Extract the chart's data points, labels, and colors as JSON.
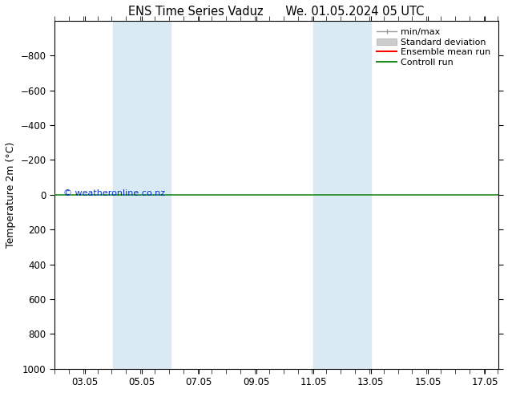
{
  "title": "ENS Time Series Vaduz      We. 01.05.2024 05 UTC",
  "ylabel": "Temperature 2m (°C)",
  "xlim": [
    2.0,
    17.5
  ],
  "ylim": [
    -1000,
    1000
  ],
  "yticks": [
    -800,
    -600,
    -400,
    -200,
    0,
    200,
    400,
    600,
    800,
    1000
  ],
  "xtick_positions": [
    3.05,
    5.05,
    7.05,
    9.05,
    11.05,
    13.05,
    15.05,
    17.05
  ],
  "xtick_labels": [
    "03.05",
    "05.05",
    "07.05",
    "09.05",
    "11.05",
    "13.05",
    "15.05",
    "17.05"
  ],
  "shaded_bands": [
    {
      "x_start": 4.05,
      "x_end": 6.05
    },
    {
      "x_start": 11.05,
      "x_end": 13.05
    }
  ],
  "shaded_color": "#daeaf5",
  "control_run_y": 0.0,
  "control_run_color": "#228B22",
  "ensemble_mean_color": "#ff0000",
  "watermark": "© weatheronline.co.nz",
  "watermark_color": "#0033cc",
  "background_color": "#ffffff",
  "plot_bg_color": "#ffffff",
  "title_fontsize": 10.5,
  "axis_fontsize": 9,
  "tick_fontsize": 8.5,
  "legend_fontsize": 8
}
